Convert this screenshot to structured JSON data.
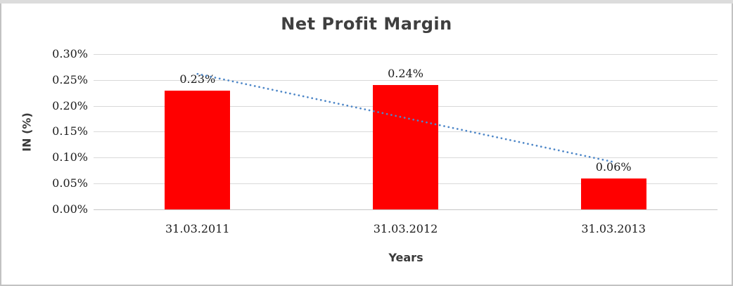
{
  "chart_data": {
    "type": "bar",
    "title": "Net Profit Margin",
    "xlabel": "Years",
    "ylabel": "IN (%)",
    "categories": [
      "31.03.2011",
      "31.03.2012",
      "31.03.2013"
    ],
    "values": [
      0.23,
      0.24,
      0.06
    ],
    "data_labels": [
      "0.23%",
      "0.24%",
      "0.06%"
    ],
    "unit": "%",
    "ylim": [
      0,
      0.3
    ],
    "ytick_step": 0.05,
    "ytick_labels": [
      "0.00%",
      "0.05%",
      "0.10%",
      "0.15%",
      "0.20%",
      "0.25%",
      "0.30%"
    ],
    "grid": true,
    "legend": "none",
    "bar_color": "#FF0000",
    "gridline_color": "#D9D9D9",
    "title_color": "#3F3F3F",
    "trendline": {
      "type": "linear",
      "style": "dotted",
      "color": "#4E87C8"
    }
  }
}
